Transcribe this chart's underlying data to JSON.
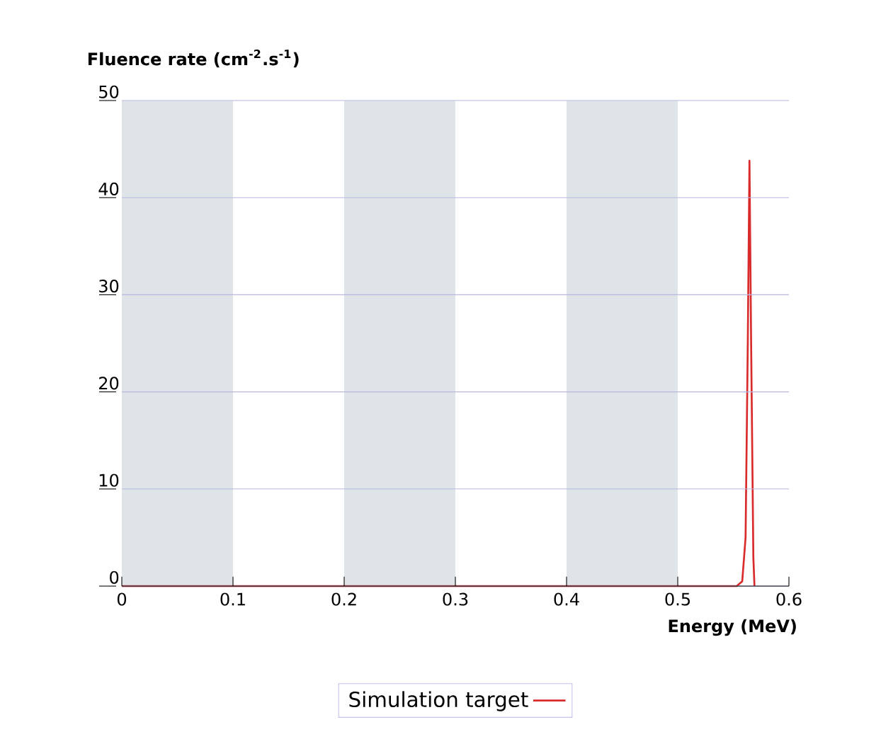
{
  "chart_data": {
    "type": "line",
    "xlabel": "Energy (MeV)",
    "ylabel": "Fluence rate (cm$^{-2}$.s$^{-1}$)",
    "xlim": [
      0,
      0.6
    ],
    "ylim": [
      0,
      50
    ],
    "xticks": [
      0,
      0.1,
      0.2,
      0.3,
      0.4,
      0.5,
      0.6
    ],
    "yticks": [
      0,
      10,
      20,
      30,
      40,
      50
    ],
    "grid": "y",
    "legend": "bottom",
    "line_style": "solid",
    "marker": "none",
    "bands": [
      {
        "axis": "x",
        "from": 0,
        "to": 0.1,
        "color": "#dfe4e8"
      },
      {
        "axis": "x",
        "from": 0.2,
        "to": 0.3,
        "color": "#dfe4e8"
      },
      {
        "axis": "x",
        "from": 0.4,
        "to": 0.5,
        "color": "#dfe4e8"
      }
    ],
    "series": [
      {
        "name": "Simulation target",
        "color": "#d92b2b",
        "x": [
          0,
          0.553,
          0.558,
          0.561,
          0.563,
          0.5645,
          0.566,
          0.568,
          0.569
        ],
        "values": [
          0,
          0,
          0.5,
          5,
          25,
          43.8,
          25,
          3,
          0
        ]
      }
    ]
  }
}
